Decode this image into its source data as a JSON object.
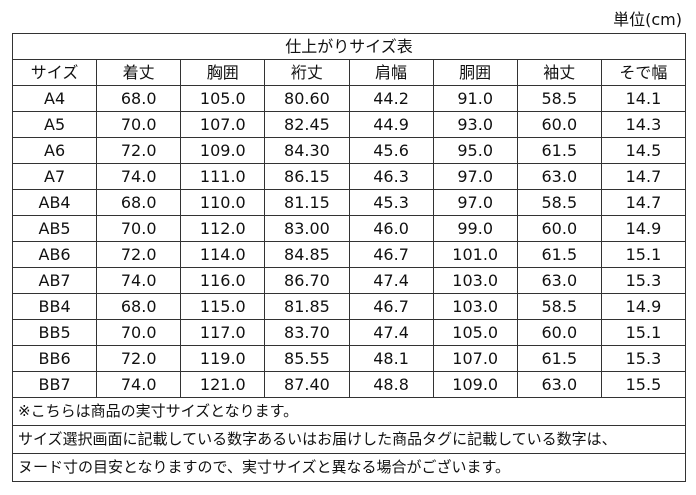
{
  "unit": "単位(cm)",
  "table": {
    "title": "仕上がりサイズ表",
    "header": [
      "サイズ",
      "着丈",
      "胸囲",
      "裄丈",
      "肩幅",
      "胴囲",
      "袖丈",
      "そで幅"
    ],
    "rows": [
      [
        "A4",
        "68.0",
        "105.0",
        "80.60",
        "44.2",
        "91.0",
        "58.5",
        "14.1"
      ],
      [
        "A5",
        "70.0",
        "107.0",
        "82.45",
        "44.9",
        "93.0",
        "60.0",
        "14.3"
      ],
      [
        "A6",
        "72.0",
        "109.0",
        "84.30",
        "45.6",
        "95.0",
        "61.5",
        "14.5"
      ],
      [
        "A7",
        "74.0",
        "111.0",
        "86.15",
        "46.3",
        "97.0",
        "63.0",
        "14.7"
      ],
      [
        "AB4",
        "68.0",
        "110.0",
        "81.15",
        "45.3",
        "97.0",
        "58.5",
        "14.7"
      ],
      [
        "AB5",
        "70.0",
        "112.0",
        "83.00",
        "46.0",
        "99.0",
        "60.0",
        "14.9"
      ],
      [
        "AB6",
        "72.0",
        "114.0",
        "84.85",
        "46.7",
        "101.0",
        "61.5",
        "15.1"
      ],
      [
        "AB7",
        "74.0",
        "116.0",
        "86.70",
        "47.4",
        "103.0",
        "63.0",
        "15.3"
      ],
      [
        "BB4",
        "68.0",
        "115.0",
        "81.85",
        "46.7",
        "103.0",
        "58.5",
        "14.9"
      ],
      [
        "BB5",
        "70.0",
        "117.0",
        "83.70",
        "47.4",
        "105.0",
        "60.0",
        "15.1"
      ],
      [
        "BB6",
        "72.0",
        "119.0",
        "85.55",
        "48.1",
        "107.0",
        "61.5",
        "15.3"
      ],
      [
        "BB7",
        "74.0",
        "121.0",
        "87.40",
        "48.8",
        "109.0",
        "63.0",
        "15.5"
      ]
    ],
    "notes": [
      "※こちらは商品の実寸サイズとなります。",
      "サイズ選択画面に記載している数字あるいはお届けした商品タグに記載している数字は、",
      "ヌード寸の目安となりますので、実寸サイズと異なる場合がございます。"
    ]
  }
}
